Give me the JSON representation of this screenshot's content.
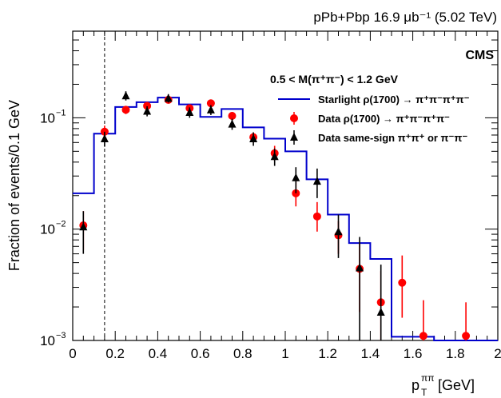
{
  "chart_data": {
    "type": "scatter",
    "header": "pPb+Pbp 16.9 μb⁻¹ (5.02 TeV)",
    "experiment": "CMS",
    "selection": "0.5 < M(π⁺π⁻) < 1.2 GeV",
    "xlabel_main": "p",
    "xlabel_sub": "T",
    "xlabel_sup": "ππ",
    "xlabel_unit": "[GeV]",
    "ylabel": "Fraction of events/0.1 GeV",
    "xlim": [
      0,
      2
    ],
    "ylim": [
      0.001,
      0.6
    ],
    "yscale": "log",
    "x_ticks": [
      "0",
      "0.2",
      "0.4",
      "0.6",
      "0.8",
      "1",
      "1.2",
      "1.4",
      "1.6",
      "1.8",
      "2"
    ],
    "y_ticks": [
      {
        "base": "10",
        "exp": "−1",
        "value": 0.1
      },
      {
        "base": "10",
        "exp": "−2",
        "value": 0.01
      },
      {
        "base": "10",
        "exp": "−3",
        "value": 0.001
      }
    ],
    "cut_line_x": 0.15,
    "legend": [
      {
        "label": "Starlight ρ(1700) → π⁺π⁻π⁺π⁻",
        "color": "#0000cc",
        "marker": "line"
      },
      {
        "label": "Data ρ(1700) → π⁺π⁻π⁺π⁻",
        "color": "#ff0000",
        "marker": "circle"
      },
      {
        "label": "Data same-sign π⁺π⁺ or π⁻π⁻",
        "color": "#000000",
        "marker": "triangle"
      }
    ],
    "series": [
      {
        "name": "Starlight ρ(1700) → π⁺π⁻π⁺π⁻",
        "kind": "step",
        "color": "#0000cc",
        "bin_edges": [
          0,
          0.1,
          0.2,
          0.3,
          0.4,
          0.5,
          0.6,
          0.7,
          0.8,
          0.9,
          1.0,
          1.1,
          1.2,
          1.3,
          1.4,
          1.5,
          1.6,
          1.7,
          1.8,
          1.9,
          2.0
        ],
        "values": [
          0.021,
          0.072,
          0.125,
          0.138,
          0.152,
          0.132,
          0.102,
          0.12,
          0.082,
          0.065,
          0.05,
          0.028,
          0.0135,
          0.0075,
          0.0054,
          0.00108,
          0.00108,
          0.001,
          0.001,
          0.001
        ]
      },
      {
        "name": "Data ρ(1700) → π⁺π⁻π⁺π⁻",
        "kind": "points",
        "color": "#ff0000",
        "x": [
          0.05,
          0.15,
          0.25,
          0.35,
          0.45,
          0.55,
          0.65,
          0.75,
          0.85,
          0.95,
          1.05,
          1.15,
          1.25,
          1.35,
          1.45,
          1.55,
          1.65,
          1.85
        ],
        "y": [
          0.0108,
          0.075,
          0.118,
          0.128,
          0.145,
          0.122,
          0.135,
          0.104,
          0.067,
          0.048,
          0.021,
          0.013,
          0.0088,
          0.0044,
          0.0022,
          0.0033,
          0.0011,
          0.0011
        ],
        "ylo": [
          0.0065,
          0.065,
          0.108,
          0.118,
          0.134,
          0.112,
          0.124,
          0.095,
          0.06,
          0.041,
          0.016,
          0.0095,
          0.006,
          0.0018,
          0.001,
          0.0016,
          0.001,
          0.001
        ],
        "yhi": [
          0.0145,
          0.085,
          0.128,
          0.138,
          0.156,
          0.132,
          0.146,
          0.113,
          0.074,
          0.056,
          0.027,
          0.0175,
          0.0118,
          0.0075,
          0.0042,
          0.0058,
          0.0023,
          0.0022
        ]
      },
      {
        "name": "Data same-sign π⁺π⁺ or π⁻π⁻",
        "kind": "points",
        "color": "#000000",
        "x": [
          0.05,
          0.15,
          0.25,
          0.35,
          0.45,
          0.55,
          0.65,
          0.75,
          0.85,
          0.95,
          1.05,
          1.15,
          1.25,
          1.35,
          1.45
        ],
        "y": [
          0.0105,
          0.065,
          0.158,
          0.115,
          0.15,
          0.112,
          0.118,
          0.088,
          0.065,
          0.045,
          0.029,
          0.027,
          0.0095,
          0.0045,
          0.0018
        ],
        "ylo": [
          0.006,
          0.055,
          0.143,
          0.103,
          0.137,
          0.1,
          0.106,
          0.078,
          0.056,
          0.037,
          0.021,
          0.019,
          0.0055,
          0.001,
          0.001
        ],
        "yhi": [
          0.0145,
          0.075,
          0.173,
          0.127,
          0.163,
          0.124,
          0.13,
          0.098,
          0.074,
          0.053,
          0.036,
          0.035,
          0.0135,
          0.0085,
          0.0048
        ]
      }
    ]
  }
}
